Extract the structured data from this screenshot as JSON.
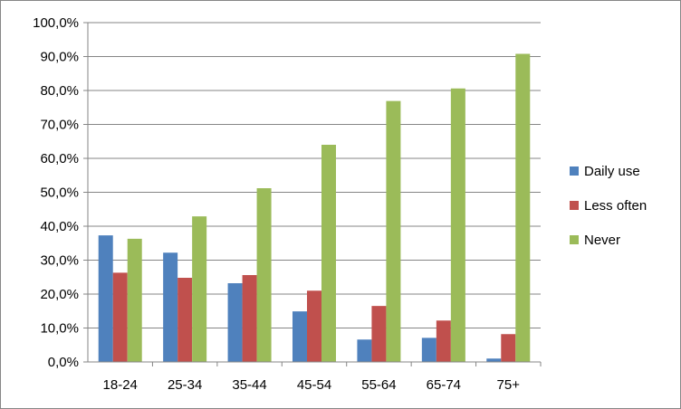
{
  "chart_data": {
    "type": "bar",
    "categories": [
      "18-24",
      "25-34",
      "35-44",
      "45-54",
      "55-64",
      "65-74",
      "75+"
    ],
    "series": [
      {
        "name": "Daily use",
        "color": "#4F81BD",
        "values": [
          37.3,
          32.2,
          23.2,
          14.9,
          6.6,
          7.1,
          1.0
        ]
      },
      {
        "name": "Less often",
        "color": "#C0504D",
        "values": [
          26.3,
          24.8,
          25.6,
          21.0,
          16.5,
          12.2,
          8.2
        ]
      },
      {
        "name": "Never",
        "color": "#9BBB59",
        "values": [
          36.3,
          42.9,
          51.2,
          64.0,
          76.9,
          80.6,
          90.8
        ]
      }
    ],
    "ylim": [
      0,
      100
    ],
    "ytick_step": 10,
    "ytick_labels": [
      "0,0%",
      "10,0%",
      "20,0%",
      "30,0%",
      "40,0%",
      "50,0%",
      "60,0%",
      "70,0%",
      "80,0%",
      "90,0%",
      "100,0%"
    ],
    "title": "",
    "xlabel": "",
    "ylabel": "",
    "grid": true,
    "legend_position": "right"
  }
}
